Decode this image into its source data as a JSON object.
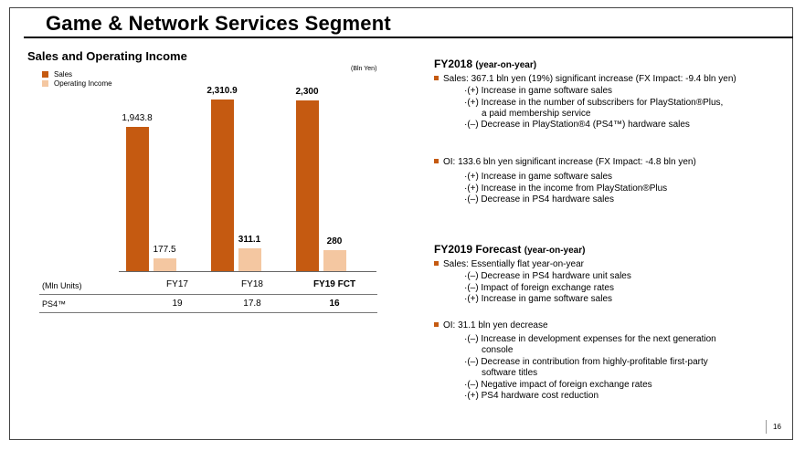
{
  "slide": {
    "title": "Game & Network Services Segment",
    "page_number": "16"
  },
  "chart": {
    "title": "Sales and Operating Income",
    "unit": "(Bln Yen)",
    "legend": [
      {
        "label": "Sales",
        "color": "#c55a11"
      },
      {
        "label": "Operating Income",
        "color": "#f4c7a1"
      }
    ]
  },
  "chart_data": {
    "type": "bar",
    "categories": [
      "FY17",
      "FY18",
      "FY19 FCT"
    ],
    "series": [
      {
        "name": "Sales",
        "values": [
          1943.8,
          2310.9,
          2300
        ],
        "labels": [
          "1,943.8",
          "2,310.9",
          "2,300"
        ],
        "color": "#c55a11"
      },
      {
        "name": "Operating Income",
        "values": [
          177.5,
          311.1,
          280
        ],
        "labels": [
          "177.5",
          "311.1",
          "280"
        ],
        "color": "#f4c7a1"
      }
    ],
    "ylabel": "(Bln Yen)",
    "ylim": [
      0,
      2400
    ],
    "grid": false,
    "legend_position": "top-left"
  },
  "table": {
    "unit_label": "(Mln Units)",
    "columns": [
      "FY17",
      "FY18",
      "FY19 FCT"
    ],
    "row_label": "PS4™",
    "values": [
      "19",
      "17.8",
      "16"
    ]
  },
  "fy2018": {
    "heading": "FY2018",
    "heading_suffix": "(year-on-year)",
    "sales": "Sales: 367.1 bln yen (19%) significant increase (FX Impact: -9.4 bln yen)",
    "sales_items": [
      "·(+) Increase in game software sales",
      "·(+) Increase in the number of subscribers for PlayStation®Plus,",
      "a paid membership service",
      "·(–) Decrease in PlayStation®4 (PS4™) hardware sales"
    ],
    "oi": "OI: 133.6 bln yen significant increase (FX Impact: -4.8 bln yen)",
    "oi_items": [
      "·(+) Increase in game software sales",
      "·(+) Increase in the income from PlayStation®Plus",
      "·(–) Decrease in PS4 hardware sales"
    ]
  },
  "fy2019": {
    "heading": "FY2019 Forecast",
    "heading_suffix": "(year-on-year)",
    "sales": "Sales: Essentially flat year-on-year",
    "sales_items": [
      "·(–) Decrease in PS4 hardware unit sales",
      "·(–) Impact of foreign exchange rates",
      "·(+) Increase in game software sales"
    ],
    "oi": "OI: 31.1 bln yen decrease",
    "oi_items": [
      "·(–) Increase in development expenses for the next generation",
      "console",
      "·(–) Decrease in contribution from highly-profitable first-party",
      "software titles",
      "·(–) Negative impact of foreign exchange rates",
      "·(+) PS4 hardware cost reduction"
    ]
  }
}
